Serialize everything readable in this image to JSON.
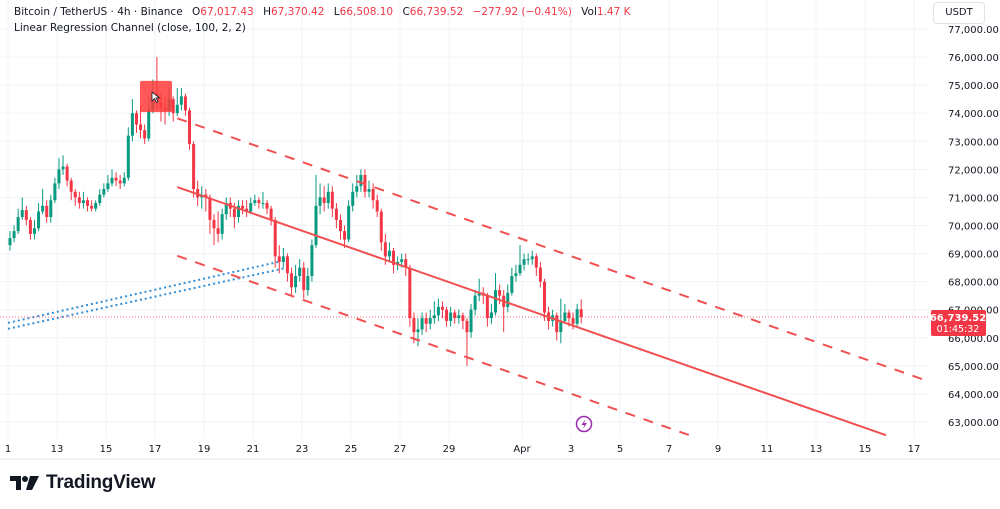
{
  "legend": {
    "symbol": "Bitcoin / TetherUS · 4h · Binance",
    "open_label": "O",
    "open": "67,017.43",
    "high_label": "H",
    "high": "67,370.42",
    "low_label": "L",
    "low": "66,508.10",
    "close_label": "C",
    "close": "66,739.52",
    "change": "−277.92 (−0.41%)",
    "vol_label": "Vol",
    "vol": "1.47 K",
    "indicator": "Linear Regression Channel (close, 100, 2, 2)"
  },
  "price_axis": {
    "currency": "USDT",
    "ticks": [
      "77,000.00",
      "76,000.00",
      "75,000.00",
      "74,000.00",
      "73,000.00",
      "72,000.00",
      "71,000.00",
      "70,000.00",
      "69,000.00",
      "68,000.00",
      "67,000.00",
      "66,000.00",
      "65,000.00",
      "64,000.00",
      "63,000.00"
    ],
    "last_price": "66,739.52",
    "countdown": "01:45:32"
  },
  "time_axis": {
    "ticks": [
      "1",
      "13",
      "15",
      "17",
      "19",
      "21",
      "23",
      "25",
      "27",
      "29",
      "Apr",
      "3",
      "5",
      "7",
      "9",
      "11",
      "13",
      "15",
      "17"
    ]
  },
  "brand": {
    "name": "TradingView"
  },
  "icons": {
    "event": "lightning-icon",
    "cursor": "cursor-icon"
  },
  "colors": {
    "up": "#089981",
    "down": "#f23645",
    "channel": "#f05050",
    "drawing": "#2f8fd8",
    "highlight": "#ff3b3b",
    "event": "#9c27b0"
  },
  "chart_data": {
    "type": "candlestick",
    "interval": "4h",
    "ylim": [
      62500,
      77500
    ],
    "grid": true,
    "last_price": 66739.52,
    "ohlc": [
      [
        69300,
        69800,
        69100,
        69550
      ],
      [
        69550,
        70000,
        69400,
        69800
      ],
      [
        69800,
        70600,
        69700,
        70300
      ],
      [
        70300,
        71000,
        70200,
        70550
      ],
      [
        70550,
        70700,
        70000,
        70200
      ],
      [
        70200,
        70300,
        69500,
        69700
      ],
      [
        69700,
        70200,
        69500,
        69900
      ],
      [
        69900,
        70800,
        69800,
        70500
      ],
      [
        70500,
        71300,
        70400,
        70700
      ],
      [
        70700,
        70900,
        70100,
        70300
      ],
      [
        70300,
        71100,
        70100,
        70900
      ],
      [
        70900,
        71700,
        70800,
        71500
      ],
      [
        71500,
        72400,
        71300,
        72000
      ],
      [
        72000,
        72500,
        71800,
        72100
      ],
      [
        72100,
        72200,
        71400,
        71600
      ],
      [
        71600,
        71700,
        70900,
        71200
      ],
      [
        71200,
        71300,
        70700,
        71000
      ],
      [
        71000,
        71200,
        70600,
        70800
      ],
      [
        70800,
        71200,
        70600,
        70900
      ],
      [
        70900,
        71000,
        70500,
        70700
      ],
      [
        70700,
        70900,
        70500,
        70600
      ],
      [
        70600,
        70900,
        70500,
        70800
      ],
      [
        70800,
        71300,
        70700,
        71100
      ],
      [
        71100,
        71500,
        71000,
        71300
      ],
      [
        71300,
        71800,
        71200,
        71500
      ],
      [
        71500,
        72000,
        71400,
        71700
      ],
      [
        71700,
        71900,
        71400,
        71600
      ],
      [
        71600,
        71800,
        71300,
        71500
      ],
      [
        71500,
        71900,
        71400,
        71700
      ],
      [
        71700,
        73500,
        71600,
        73200
      ],
      [
        73200,
        74500,
        73000,
        74000
      ],
      [
        74000,
        74100,
        73300,
        73600
      ],
      [
        73600,
        74300,
        73100,
        73400
      ],
      [
        73400,
        73600,
        72900,
        73100
      ],
      [
        73100,
        74600,
        73000,
        74100
      ],
      [
        74100,
        75200,
        74000,
        74700
      ],
      [
        74700,
        76000,
        74100,
        74400
      ],
      [
        74400,
        74700,
        73700,
        74200
      ],
      [
        74200,
        74600,
        73600,
        74100
      ],
      [
        74100,
        74900,
        73900,
        74500
      ],
      [
        74500,
        74600,
        73700,
        74000
      ],
      [
        74000,
        74900,
        73900,
        74300
      ],
      [
        74300,
        74900,
        74100,
        74600
      ],
      [
        74600,
        74700,
        73900,
        74100
      ],
      [
        74100,
        74200,
        72700,
        72900
      ],
      [
        72900,
        73000,
        71000,
        71300
      ],
      [
        71300,
        71600,
        70700,
        71000
      ],
      [
        71000,
        71400,
        70600,
        71100
      ],
      [
        71100,
        71300,
        70500,
        71000
      ],
      [
        71000,
        71100,
        69700,
        70200
      ],
      [
        70200,
        70400,
        69300,
        69900
      ],
      [
        69900,
        70500,
        69400,
        69700
      ],
      [
        69700,
        70600,
        69500,
        70400
      ],
      [
        70400,
        71000,
        70200,
        70800
      ],
      [
        70800,
        71000,
        70300,
        70600
      ],
      [
        70600,
        70800,
        69900,
        70300
      ],
      [
        70300,
        70900,
        70100,
        70700
      ],
      [
        70700,
        70900,
        70400,
        70600
      ],
      [
        70600,
        70900,
        70300,
        70500
      ],
      [
        70500,
        71000,
        70400,
        70800
      ],
      [
        70800,
        71100,
        70700,
        70900
      ],
      [
        70900,
        71000,
        70600,
        70800
      ],
      [
        70800,
        71200,
        70600,
        70800
      ],
      [
        70800,
        70900,
        70400,
        70600
      ],
      [
        70600,
        70700,
        70000,
        70200
      ],
      [
        70200,
        70300,
        68500,
        68900
      ],
      [
        68900,
        69300,
        68300,
        68700
      ],
      [
        68700,
        69200,
        68500,
        68900
      ],
      [
        68900,
        69000,
        68000,
        68300
      ],
      [
        68300,
        68500,
        67500,
        67800
      ],
      [
        67800,
        68600,
        67600,
        68200
      ],
      [
        68200,
        68800,
        68000,
        68500
      ],
      [
        68500,
        68700,
        67400,
        67700
      ],
      [
        67700,
        68500,
        67500,
        68200
      ],
      [
        68200,
        69500,
        68000,
        69300
      ],
      [
        69300,
        71800,
        69200,
        70700
      ],
      [
        70700,
        71500,
        70400,
        71000
      ],
      [
        71000,
        71400,
        70500,
        70800
      ],
      [
        70800,
        71500,
        70600,
        71200
      ],
      [
        71200,
        71400,
        70300,
        70600
      ],
      [
        70600,
        70800,
        69900,
        70200
      ],
      [
        70200,
        70400,
        69500,
        69800
      ],
      [
        69800,
        70000,
        69200,
        69500
      ],
      [
        69500,
        70900,
        69400,
        70700
      ],
      [
        70700,
        71500,
        70500,
        71200
      ],
      [
        71200,
        71800,
        71000,
        71400
      ],
      [
        71400,
        72000,
        71200,
        71800
      ],
      [
        71800,
        72000,
        71000,
        71200
      ],
      [
        71200,
        71600,
        71000,
        71300
      ],
      [
        71300,
        71500,
        70600,
        70900
      ],
      [
        70900,
        71100,
        70300,
        70500
      ],
      [
        70500,
        70600,
        69100,
        69400
      ],
      [
        69400,
        69700,
        68600,
        68900
      ],
      [
        68900,
        69400,
        68700,
        69100
      ],
      [
        69100,
        69200,
        68300,
        68600
      ],
      [
        68600,
        68900,
        68400,
        68700
      ],
      [
        68700,
        69000,
        68500,
        68800
      ],
      [
        68800,
        69000,
        68200,
        68500
      ],
      [
        68500,
        68600,
        66400,
        66700
      ],
      [
        66700,
        66900,
        65800,
        66200
      ],
      [
        66200,
        66700,
        65700,
        66300
      ],
      [
        66300,
        66900,
        66100,
        66700
      ],
      [
        66700,
        66900,
        66200,
        66500
      ],
      [
        66500,
        67000,
        66300,
        66700
      ],
      [
        66700,
        67300,
        66500,
        66800
      ],
      [
        66800,
        67400,
        66600,
        67100
      ],
      [
        67100,
        67300,
        66700,
        67000
      ],
      [
        67000,
        67100,
        66400,
        66600
      ],
      [
        66600,
        67100,
        66400,
        66900
      ],
      [
        66900,
        67000,
        66500,
        66700
      ],
      [
        66700,
        67000,
        66500,
        66800
      ],
      [
        66800,
        66900,
        66300,
        66600
      ],
      [
        66600,
        66700,
        65000,
        66200
      ],
      [
        66200,
        67200,
        66000,
        67000
      ],
      [
        67000,
        67700,
        66800,
        67500
      ],
      [
        67500,
        68100,
        67300,
        67600
      ],
      [
        67600,
        67800,
        67200,
        67500
      ],
      [
        67500,
        67600,
        66400,
        66700
      ],
      [
        66700,
        67200,
        66500,
        66900
      ],
      [
        66900,
        68300,
        66800,
        67700
      ],
      [
        67700,
        67900,
        67200,
        67500
      ],
      [
        67500,
        67700,
        66200,
        67100
      ],
      [
        67100,
        67900,
        66900,
        67600
      ],
      [
        67600,
        68500,
        67500,
        68200
      ],
      [
        68200,
        68600,
        68000,
        68300
      ],
      [
        68300,
        69300,
        68200,
        68600
      ],
      [
        68600,
        69000,
        68400,
        68800
      ],
      [
        68800,
        69000,
        68600,
        68800
      ],
      [
        68800,
        69100,
        68600,
        68900
      ],
      [
        68900,
        69000,
        68200,
        68500
      ],
      [
        68500,
        68700,
        67800,
        68000
      ],
      [
        68000,
        68100,
        66600,
        66900
      ],
      [
        66900,
        67100,
        66300,
        66600
      ],
      [
        66600,
        67000,
        66400,
        66800
      ],
      [
        66800,
        66900,
        65900,
        66200
      ],
      [
        66200,
        67400,
        65800,
        66600
      ],
      [
        66600,
        67200,
        66500,
        66900
      ],
      [
        66900,
        67000,
        66400,
        66700
      ],
      [
        66700,
        66900,
        66300,
        66500
      ],
      [
        66500,
        67200,
        66400,
        67017.43
      ],
      [
        67017.43,
        67370.42,
        66508.1,
        66739.52
      ]
    ],
    "regression_channel": {
      "source": "close",
      "length": 100,
      "upper_dev": 2,
      "lower_dev": 2,
      "center_start": 71370,
      "slope_per_bar": -50.9,
      "channel_offset": 2450
    },
    "trendlines": [
      {
        "from": 66530,
        "to": 68700
      },
      {
        "from": 66320,
        "to": 68480
      }
    ],
    "highlight_box": {
      "top": 75150,
      "bottom": 74040
    }
  }
}
